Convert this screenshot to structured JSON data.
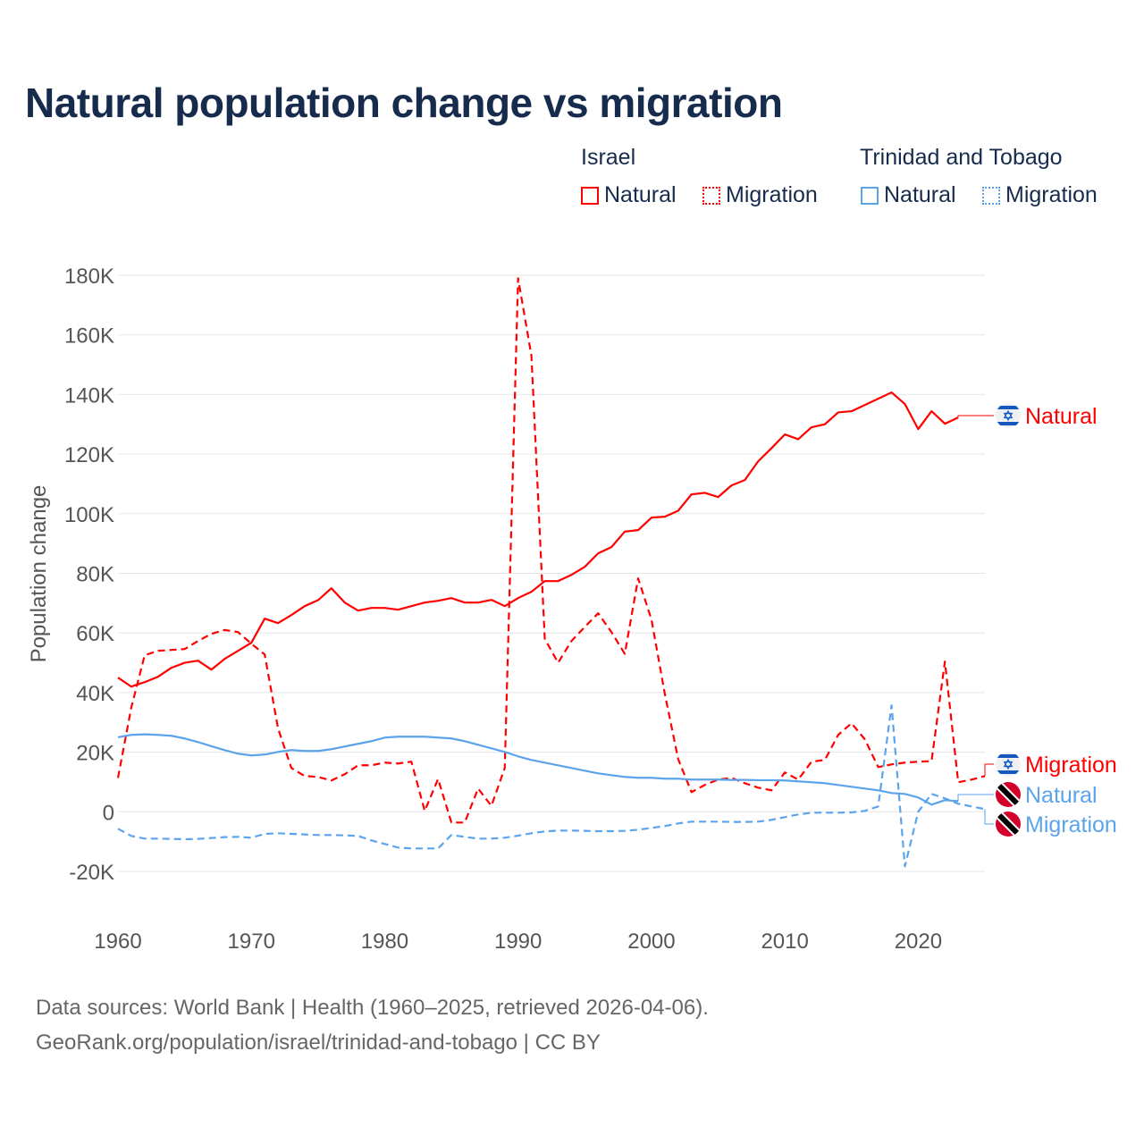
{
  "title": "Natural population change vs migration",
  "legend": {
    "groups": [
      {
        "name": "Israel",
        "items": [
          "Natural",
          "Migration"
        ]
      },
      {
        "name": "Trinidad and Tobago",
        "items": [
          "Natural",
          "Migration"
        ]
      }
    ]
  },
  "footer": {
    "line1": "Data sources: World Bank | Health (1960–2025, retrieved 2026-04-06).",
    "line2": "GeoRank.org/population/israel/trinidad-and-tobago | CC BY"
  },
  "colors": {
    "israel": "#ff0000",
    "trinidad": "#5ba3ea",
    "grid": "#e6e6e6",
    "axis_text": "#555555"
  },
  "chart_data": {
    "type": "line",
    "title": "Natural population change vs migration",
    "xlabel": "",
    "ylabel": "Population change",
    "xlim": [
      1960,
      2025
    ],
    "ylim": [
      -20000,
      180000
    ],
    "x_ticks": [
      1960,
      1970,
      1980,
      1990,
      2000,
      2010,
      2020
    ],
    "x_tick_labels": [
      "1960",
      "1970",
      "1980",
      "1990",
      "2000",
      "2010",
      "2020"
    ],
    "y_ticks": [
      -20000,
      0,
      20000,
      40000,
      60000,
      80000,
      100000,
      120000,
      140000,
      160000,
      180000
    ],
    "y_tick_labels": [
      "-20K",
      "0",
      "20K",
      "40K",
      "60K",
      "80K",
      "100K",
      "120K",
      "140K",
      "160K",
      "180K"
    ],
    "grid": true,
    "legend_position": "top-right",
    "series": [
      {
        "name": "Israel Natural",
        "label": "Natural",
        "country": "israel",
        "dashed": false,
        "start": 1960,
        "values": [
          45000,
          42000,
          43500,
          45300,
          48300,
          50000,
          50700,
          47700,
          51300,
          54000,
          56700,
          64800,
          63300,
          66000,
          69000,
          71000,
          75000,
          70200,
          67500,
          68400,
          68400,
          67800,
          69000,
          70200,
          70800,
          71700,
          70200,
          70200,
          71100,
          69000,
          71700,
          73800,
          77400,
          77400,
          79500,
          82200,
          86700,
          88800,
          94000,
          94500,
          98700,
          99000,
          101000,
          106500,
          107000,
          105600,
          109500,
          111300,
          117600,
          122000,
          126600,
          125000,
          129000,
          130000,
          134000,
          134400,
          136500,
          138600,
          140700,
          136800,
          128400,
          134400,
          130200,
          132300
        ]
      },
      {
        "name": "Israel Migration",
        "label": "Migration",
        "country": "israel",
        "dashed": true,
        "start": 1960,
        "values": [
          11400,
          35000,
          52500,
          54000,
          54300,
          54600,
          57300,
          59700,
          61000,
          60300,
          56400,
          52800,
          28000,
          14700,
          12000,
          11700,
          10500,
          12600,
          15600,
          15600,
          16500,
          16200,
          16800,
          300,
          11000,
          -3600,
          -3600,
          7800,
          2000,
          14700,
          179000,
          153000,
          58000,
          50000,
          57300,
          62000,
          66600,
          60300,
          53000,
          78300,
          64500,
          39600,
          17700,
          6600,
          9000,
          10800,
          11400,
          9600,
          8100,
          7200,
          13200,
          10800,
          16800,
          17400,
          25800,
          29700,
          24300,
          15000,
          15900,
          16500,
          16800,
          17000,
          50400,
          9900,
          10800,
          12000
        ]
      },
      {
        "name": "Trinidad and Tobago Natural",
        "label": "Natural",
        "country": "trinidad",
        "dashed": false,
        "start": 1960,
        "values": [
          25000,
          25800,
          26000,
          25800,
          25500,
          24600,
          23400,
          22000,
          20700,
          19500,
          18900,
          19200,
          20100,
          20700,
          20400,
          20400,
          21000,
          21900,
          22800,
          23700,
          24900,
          25200,
          25200,
          25200,
          24900,
          24600,
          23700,
          22500,
          21300,
          20100,
          18600,
          17400,
          16500,
          15600,
          14700,
          13800,
          12900,
          12300,
          11700,
          11400,
          11400,
          11100,
          11100,
          10800,
          10800,
          10800,
          10700,
          10700,
          10600,
          10600,
          10500,
          10200,
          9900,
          9600,
          9000,
          8400,
          7800,
          7200,
          6300,
          6000,
          4800,
          2400,
          3900,
          3600
        ]
      },
      {
        "name": "Trinidad and Tobago Migration",
        "label": "Migration",
        "country": "trinidad",
        "dashed": true,
        "start": 1960,
        "values": [
          -5700,
          -8100,
          -9000,
          -9000,
          -9100,
          -9200,
          -9100,
          -8800,
          -8500,
          -8400,
          -8700,
          -7400,
          -7200,
          -7400,
          -7600,
          -7800,
          -7800,
          -7900,
          -8100,
          -9600,
          -10800,
          -12000,
          -12300,
          -12300,
          -12300,
          -7800,
          -8400,
          -9000,
          -9000,
          -8700,
          -8000,
          -7200,
          -6600,
          -6300,
          -6300,
          -6400,
          -6500,
          -6500,
          -6400,
          -6000,
          -5400,
          -4800,
          -3900,
          -3300,
          -3300,
          -3300,
          -3400,
          -3400,
          -3300,
          -2700,
          -1800,
          -900,
          -300,
          -300,
          -300,
          -200,
          300,
          1800,
          35700,
          -18300,
          0,
          6000,
          4500,
          2700,
          1800,
          900
        ]
      }
    ]
  }
}
